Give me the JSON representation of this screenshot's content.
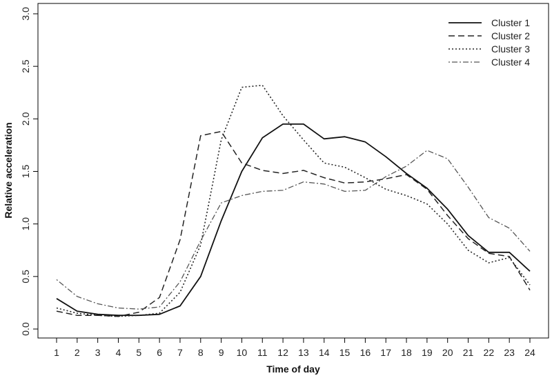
{
  "chart_data": {
    "type": "line",
    "title": "",
    "xlabel": "Time of day",
    "ylabel": "Relative acceleration",
    "x": [
      1,
      2,
      3,
      4,
      5,
      6,
      7,
      8,
      9,
      10,
      11,
      12,
      13,
      14,
      15,
      16,
      17,
      18,
      19,
      20,
      21,
      22,
      23,
      24
    ],
    "xticks": [
      "1",
      "2",
      "3",
      "4",
      "5",
      "6",
      "7",
      "8",
      "9",
      "10",
      "11",
      "12",
      "13",
      "14",
      "15",
      "16",
      "17",
      "18",
      "19",
      "20",
      "21",
      "22",
      "23",
      "24"
    ],
    "yticks": [
      "0.0",
      "0.5",
      "1.0",
      "1.5",
      "2.0",
      "2.5",
      "3.0"
    ],
    "ylim": [
      0,
      3
    ],
    "grid": false,
    "legend_position": "top-right",
    "series": [
      {
        "name": "Cluster 1",
        "dash": "solid",
        "color": "#111111",
        "values": [
          0.29,
          0.17,
          0.14,
          0.13,
          0.13,
          0.14,
          0.22,
          0.5,
          1.03,
          1.5,
          1.82,
          1.95,
          1.95,
          1.81,
          1.83,
          1.78,
          1.64,
          1.48,
          1.34,
          1.14,
          0.89,
          0.73,
          0.73,
          0.55
        ]
      },
      {
        "name": "Cluster 2",
        "dash": "dashed",
        "color": "#222222",
        "values": [
          0.17,
          0.13,
          0.13,
          0.12,
          0.16,
          0.3,
          0.85,
          1.84,
          1.88,
          1.58,
          1.51,
          1.48,
          1.51,
          1.44,
          1.39,
          1.4,
          1.43,
          1.47,
          1.33,
          1.08,
          0.86,
          0.72,
          0.69,
          0.37
        ]
      },
      {
        "name": "Cluster 3",
        "dash": "dotted",
        "color": "#222222",
        "values": [
          0.2,
          0.15,
          0.13,
          0.12,
          0.13,
          0.15,
          0.35,
          0.8,
          1.8,
          2.3,
          2.32,
          2.03,
          1.8,
          1.58,
          1.54,
          1.44,
          1.33,
          1.27,
          1.19,
          1.0,
          0.75,
          0.63,
          0.68,
          0.42
        ]
      },
      {
        "name": "Cluster 4",
        "dash": "dashdot",
        "color": "#555555",
        "values": [
          0.47,
          0.31,
          0.24,
          0.2,
          0.19,
          0.21,
          0.45,
          0.84,
          1.2,
          1.27,
          1.31,
          1.32,
          1.4,
          1.38,
          1.31,
          1.32,
          1.45,
          1.55,
          1.7,
          1.62,
          1.35,
          1.06,
          0.96,
          0.74
        ]
      }
    ]
  }
}
